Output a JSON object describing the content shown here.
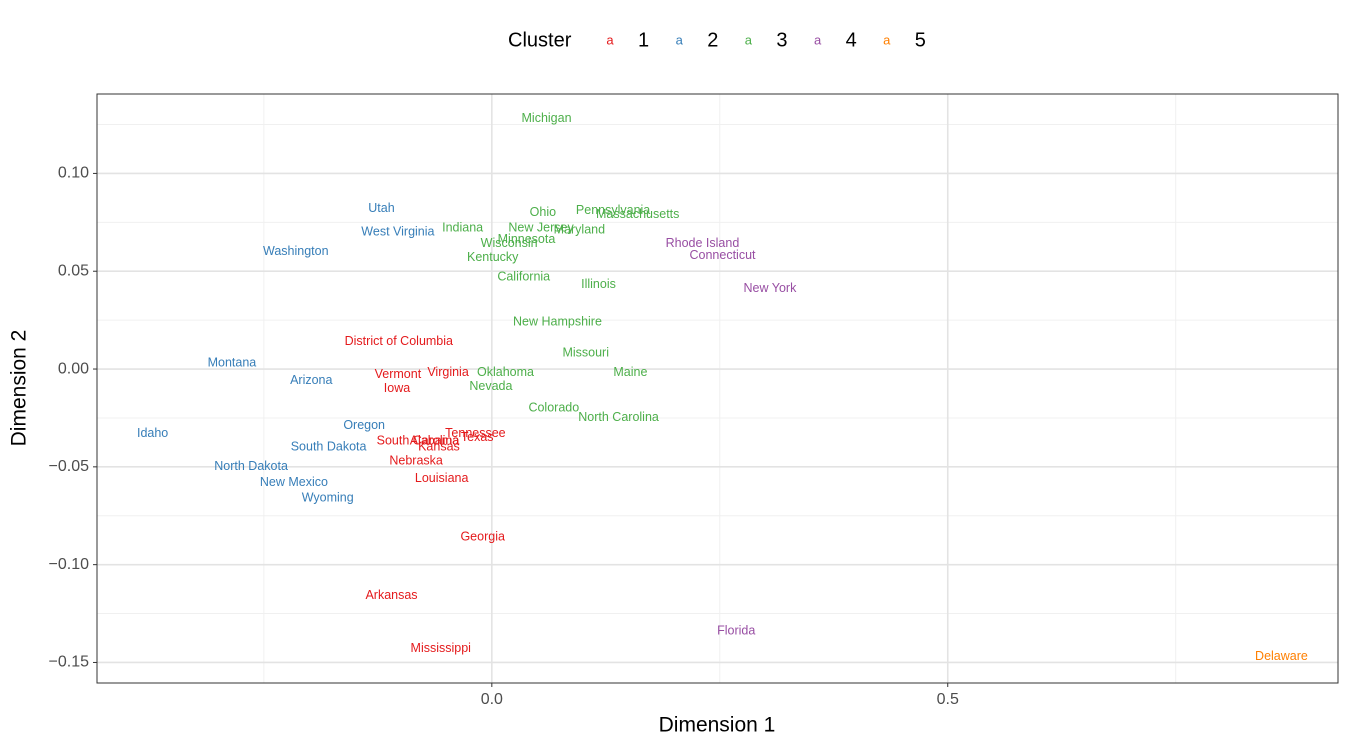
{
  "chart_data": {
    "type": "scatter",
    "x_label": "Dimension 1",
    "y_label": "Dimension 2",
    "legend_title": "Cluster",
    "legend_key_glyph": "a",
    "legend_position": "top",
    "grid": true,
    "xlim": [
      -0.433,
      0.928
    ],
    "ylim": [
      -0.1605,
      0.1406
    ],
    "xticks": [
      {
        "value": 0,
        "label": "0.0"
      },
      {
        "value": 0.5,
        "label": "0.5"
      }
    ],
    "yticks": [
      {
        "value": 0.1,
        "label": "0.10"
      },
      {
        "value": 0.05,
        "label": "0.05"
      },
      {
        "value": 0,
        "label": "0.00"
      },
      {
        "value": -0.05,
        "label": "−0.05"
      },
      {
        "value": -0.1,
        "label": "−0.10"
      },
      {
        "value": -0.15,
        "label": "−0.15"
      }
    ],
    "minor_xticks": [
      -0.25,
      0.25,
      0.75
    ],
    "minor_yticks": [
      0.125,
      0.075,
      0.025,
      -0.025,
      -0.075,
      -0.125
    ],
    "series": [
      {
        "name": "1",
        "color": "#e41a1c",
        "labels": [
          "District of Columbia",
          "Vermont",
          "Virginia",
          "Iowa",
          "Tennessee",
          "Texas",
          "South Carolina",
          "Alabama",
          "Kansas",
          "Nebraska",
          "Louisiana",
          "Georgia",
          "Arkansas",
          "Mississippi"
        ],
        "x": [
          -0.102,
          -0.103,
          -0.048,
          -0.104,
          -0.018,
          -0.016,
          -0.081,
          -0.063,
          -0.058,
          -0.083,
          -0.055,
          -0.01,
          -0.11,
          -0.056
        ],
        "values": [
          0.014,
          -0.003,
          -0.002,
          -0.01,
          -0.033,
          -0.035,
          -0.037,
          -0.037,
          -0.04,
          -0.047,
          -0.056,
          -0.086,
          -0.116,
          -0.143
        ]
      },
      {
        "name": "2",
        "color": "#377eb8",
        "labels": [
          "Utah",
          "West Virginia",
          "Washington",
          "Montana",
          "Arizona",
          "Oregon",
          "Idaho",
          "South Dakota",
          "North Dakota",
          "New Mexico",
          "Wyoming"
        ],
        "x": [
          -0.121,
          -0.103,
          -0.215,
          -0.285,
          -0.198,
          -0.14,
          -0.372,
          -0.179,
          -0.264,
          -0.217,
          -0.18
        ],
        "values": [
          0.082,
          0.07,
          0.06,
          0.003,
          -0.006,
          -0.029,
          -0.033,
          -0.04,
          -0.05,
          -0.058,
          -0.066
        ]
      },
      {
        "name": "3",
        "color": "#4daf4a",
        "labels": [
          "Michigan",
          "Indiana",
          "Ohio",
          "Pennsylvania",
          "Massachusetts",
          "New Jersey",
          "Maryland",
          "Minnesota",
          "Wisconsin",
          "Kentucky",
          "California",
          "Illinois",
          "New Hampshire",
          "Missouri",
          "Oklahoma",
          "Maine",
          "Nevada",
          "Colorado",
          "North Carolina"
        ],
        "x": [
          0.06,
          -0.032,
          0.056,
          0.133,
          0.16,
          0.054,
          0.096,
          0.038,
          0.019,
          0.001,
          0.035,
          0.117,
          0.072,
          0.103,
          0.015,
          0.152,
          -0.001,
          0.068,
          0.139
        ],
        "values": [
          0.128,
          0.072,
          0.08,
          0.081,
          0.079,
          0.072,
          0.071,
          0.066,
          0.064,
          0.057,
          0.047,
          0.043,
          0.024,
          0.008,
          -0.002,
          -0.002,
          -0.009,
          -0.02,
          -0.025
        ]
      },
      {
        "name": "4",
        "color": "#984ea3",
        "labels": [
          "Rhode Island",
          "Connecticut",
          "New York",
          "Florida"
        ],
        "x": [
          0.231,
          0.253,
          0.305,
          0.268
        ],
        "values": [
          0.064,
          0.058,
          0.041,
          -0.134
        ]
      },
      {
        "name": "5",
        "color": "#ff7f00",
        "labels": [
          "Delaware"
        ],
        "x": [
          0.866
        ],
        "values": [
          -0.147
        ]
      }
    ]
  }
}
